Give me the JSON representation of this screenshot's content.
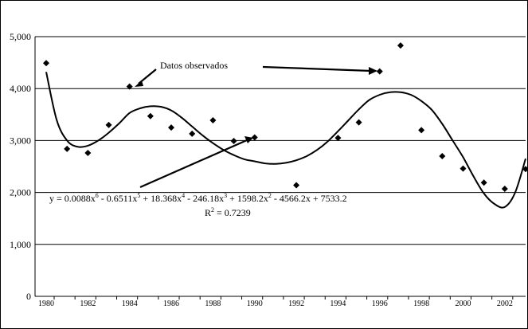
{
  "chart_data": {
    "type": "scatter",
    "x": [
      1980,
      1981,
      1982,
      1983,
      1984,
      1985,
      1986,
      1987,
      1988,
      1989,
      1990,
      1991,
      1992,
      1993,
      1994,
      1995,
      1996,
      1997,
      1998,
      1999,
      2000,
      2001,
      2002,
      2003
    ],
    "y": [
      4490,
      2840,
      2760,
      3300,
      4040,
      3470,
      3250,
      3130,
      3390,
      2990,
      3060,
      null,
      2140,
      null,
      3050,
      3350,
      4330,
      4830,
      3200,
      2700,
      2460,
      2190,
      2070,
      2450
    ],
    "trendline": {
      "type": "polynomial",
      "x": [
        1980,
        1980.5,
        1981,
        1981.5,
        1982,
        1982.5,
        1983,
        1983.5,
        1984,
        1984.5,
        1985,
        1985.5,
        1986,
        1986.5,
        1987,
        1987.5,
        1988,
        1988.5,
        1989,
        1989.5,
        1990,
        1990.5,
        1991,
        1991.5,
        1992,
        1992.5,
        1993,
        1993.5,
        1994,
        1994.5,
        1995,
        1995.5,
        1996,
        1996.5,
        1997,
        1997.5,
        1998,
        1998.5,
        1999,
        1999.5,
        2000,
        2000.5,
        2001,
        2001.5,
        2002,
        2002.5,
        2003
      ],
      "y": [
        4320,
        3400,
        3000,
        2880,
        2900,
        3000,
        3150,
        3330,
        3530,
        3620,
        3660,
        3650,
        3580,
        3440,
        3270,
        3100,
        2950,
        2820,
        2720,
        2640,
        2600,
        2560,
        2550,
        2570,
        2620,
        2700,
        2820,
        2980,
        3180,
        3390,
        3600,
        3780,
        3880,
        3930,
        3930,
        3880,
        3760,
        3590,
        3320,
        3000,
        2680,
        2310,
        1980,
        1780,
        1720,
        2000,
        2650
      ]
    },
    "xlim": [
      1980,
      2003
    ],
    "ylim": [
      0,
      5000
    ],
    "yticks": [
      "0",
      "1,000",
      "2,000",
      "3,000",
      "4,000",
      "5,000"
    ],
    "xticks": [
      "1980",
      "1982",
      "1984",
      "1986",
      "1988",
      "1990",
      "1992",
      "1994",
      "1996",
      "1998",
      "2000",
      "2002"
    ],
    "grid": true,
    "annotations": {
      "label": "Datos observados",
      "equation": {
        "prefix": "y = 0.0088x",
        "e1": "6",
        "p2": " - 0.6511x",
        "e2": "5",
        "p3": " + 18.368x",
        "e3": "4",
        "p4": " - 246.18x",
        "e4": "3",
        "p5": " + 1598.2x",
        "e5": "2",
        "p6": " - 4566.2x + 7533.2"
      },
      "r2": {
        "prefix": "R",
        "exp": "2",
        "suffix": " = 0.7239"
      }
    }
  }
}
